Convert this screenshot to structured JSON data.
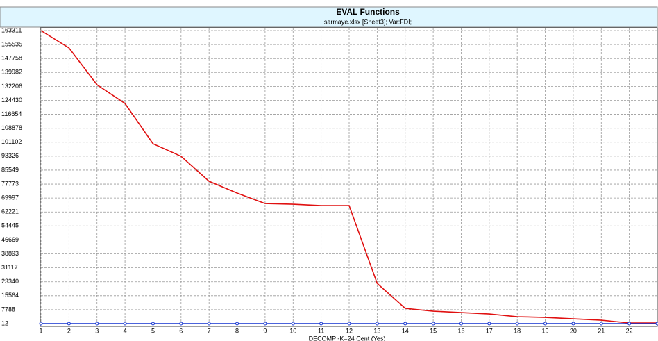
{
  "chart_data": {
    "type": "line",
    "title": "EVAL Functions",
    "subtitle": "sarmaye.xlsx [Sheet3];    Var:FDI;",
    "x_label": "DECOMP -K=24 Cent (Yes)",
    "x": [
      1,
      2,
      3,
      4,
      5,
      6,
      7,
      8,
      9,
      10,
      11,
      12,
      13,
      14,
      15,
      16,
      17,
      18,
      19,
      20,
      21,
      22,
      23
    ],
    "series": [
      {
        "color": "#e01010",
        "values": [
          163311,
          153650,
          133130,
          122680,
          100230,
          93270,
          79335,
          72756,
          66950,
          66560,
          65790,
          65790,
          22446,
          8514,
          6966,
          6192,
          5418,
          3870,
          3483,
          2709,
          1935,
          387,
          387
        ]
      },
      {
        "color": "#1030d0",
        "values": [
          12,
          12,
          12,
          12,
          12,
          12,
          12,
          12,
          12,
          12,
          12,
          12,
          12,
          12,
          12,
          12,
          12,
          12,
          12,
          12,
          12,
          12,
          12
        ],
        "markers": true
      }
    ],
    "xlim": [
      1,
      23
    ],
    "xticks": [
      1,
      2,
      3,
      4,
      5,
      6,
      7,
      8,
      9,
      10,
      11,
      12,
      13,
      14,
      15,
      16,
      17,
      18,
      19,
      20,
      21,
      22
    ],
    "ylim": [
      12,
      163311
    ],
    "yticks": [
      12,
      7788,
      15564,
      23340,
      31117,
      38893,
      46669,
      54445,
      62221,
      69997,
      77773,
      85549,
      93326,
      101102,
      108878,
      116654,
      124430,
      132206,
      139982,
      147758,
      155535,
      163311
    ],
    "grid": true
  }
}
